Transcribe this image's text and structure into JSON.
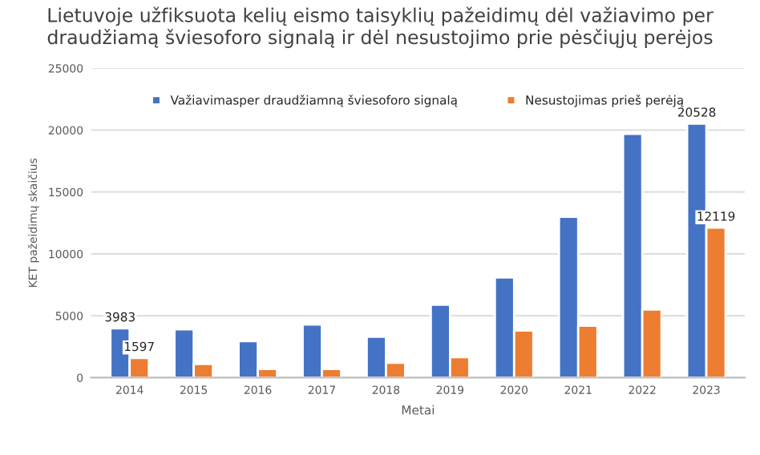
{
  "chart_data": {
    "type": "bar",
    "title": "Lietuvoje užfiksuota kelių eismo taisyklių pažeidimų dėl važiavimo per\ndraudžiamą šviesoforo signalą ir dėl nesustojimo prie pėsčiųjų perėjos",
    "xlabel": "Metai",
    "ylabel": "KET pažeidimų skaičius",
    "categories": [
      "2014",
      "2015",
      "2016",
      "2017",
      "2018",
      "2019",
      "2020",
      "2021",
      "2022",
      "2023"
    ],
    "series": [
      {
        "name": "Važiavimasper draudžiamną šviesoforo signalą",
        "color": "#4472c4",
        "values": [
          3983,
          3900,
          2950,
          4300,
          3300,
          5900,
          8100,
          13000,
          19700,
          20528
        ],
        "value_labels": [
          "3983",
          null,
          null,
          null,
          null,
          null,
          null,
          null,
          null,
          "20528"
        ]
      },
      {
        "name": "Nesustojimas prieš perėją",
        "color": "#ed7d31",
        "values": [
          1597,
          1100,
          700,
          700,
          1200,
          1650,
          3800,
          4200,
          5500,
          12119
        ],
        "value_labels": [
          "1597",
          null,
          null,
          null,
          null,
          null,
          null,
          null,
          null,
          "12119"
        ]
      }
    ],
    "ylim": [
      0,
      25000
    ],
    "yticks": [
      0,
      5000,
      10000,
      15000,
      20000,
      25000
    ],
    "grid": "y",
    "legend": "top"
  }
}
